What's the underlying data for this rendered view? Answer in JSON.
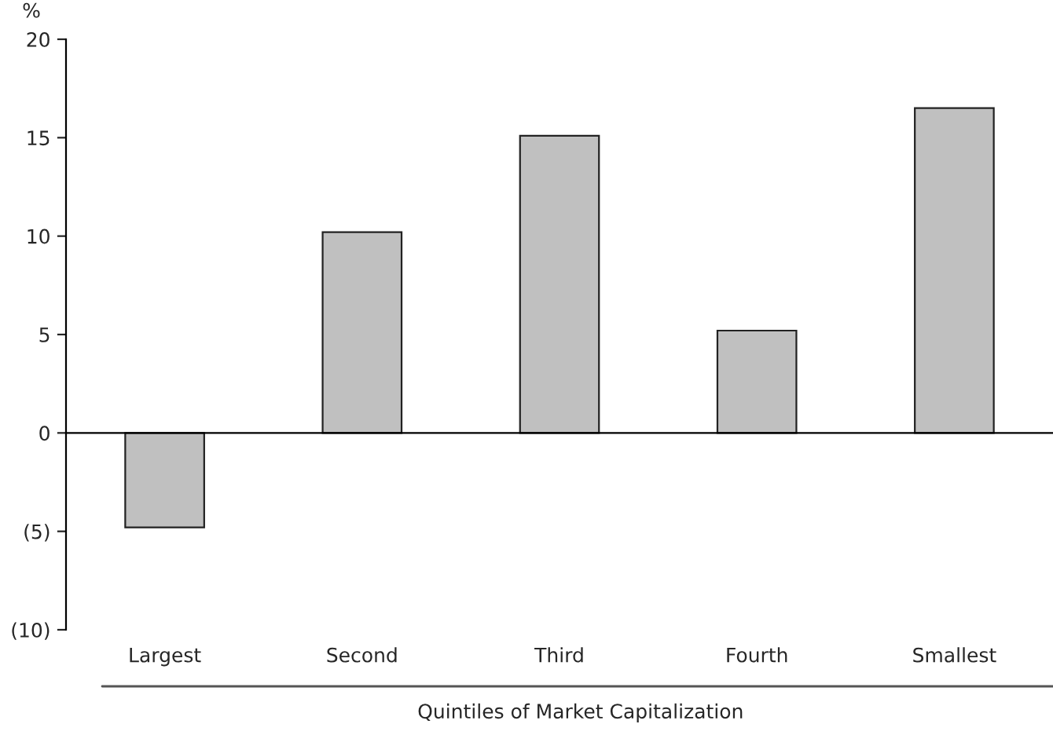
{
  "chart_data": {
    "type": "bar",
    "xlabel": "Quintiles of Market Capitalization",
    "ylabel": "%",
    "categories": [
      "Largest",
      "Second",
      "Third",
      "Fourth",
      "Smallest"
    ],
    "values": [
      -4.8,
      10.2,
      15.1,
      5.2,
      16.5
    ],
    "color": "#c0c0c0",
    "ylim": [
      -10,
      20
    ],
    "yticks": [
      {
        "value": -10,
        "label": "(10)"
      },
      {
        "value": -5,
        "label": "(5)"
      },
      0,
      5,
      10,
      15,
      20
    ],
    "legend": false
  }
}
